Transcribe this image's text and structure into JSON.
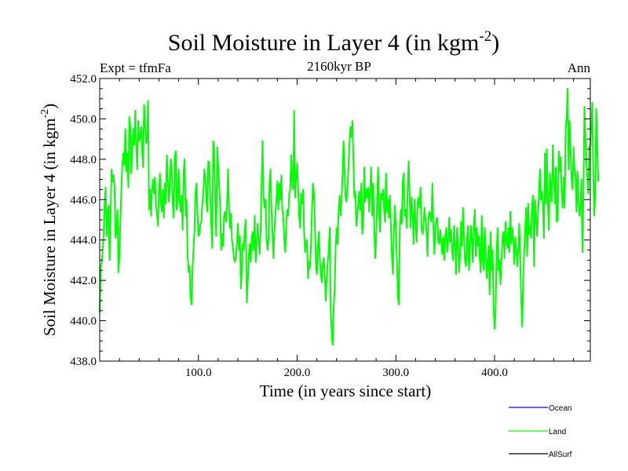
{
  "chart_data": {
    "type": "line",
    "title": "Soil Moisture in Layer 4 (in kgm",
    "title_exponent": "-2",
    "title_close": ")",
    "subtitle": "2160kyr BP",
    "left_label": "Expt = tfmFa",
    "right_label": "Ann",
    "xlabel": "Time (in years since start)",
    "ylabel": "Soil Moisture in Layer 4 (in kgm",
    "ylabel_exponent": "-2",
    "ylabel_close": ")",
    "xlim": [
      0,
      497
    ],
    "ylim": [
      438,
      452
    ],
    "x_ticks": [
      100,
      200,
      300,
      400
    ],
    "x_tick_labels": [
      "100.0",
      "200.0",
      "300.0",
      "400.0"
    ],
    "y_ticks": [
      438,
      440,
      442,
      444,
      446,
      448,
      450,
      452
    ],
    "y_tick_labels": [
      "438.0",
      "440.0",
      "442.0",
      "444.0",
      "446.0",
      "448.0",
      "450.0",
      "452.0"
    ],
    "legend": [
      {
        "name": "Ocean",
        "color": "#0000ff"
      },
      {
        "name": "Land",
        "color": "#00ff00"
      },
      {
        "name": "AllSurf",
        "color": "#000000"
      }
    ],
    "series": [
      {
        "name": "Land",
        "color": "#00ff00",
        "x_start": 0,
        "x_step": 1,
        "values": [
          440.4,
          442.6,
          442.9,
          443.5,
          444.3,
          445.8,
          446.6,
          444.2,
          445.4,
          445.7,
          443.0,
          445.2,
          447.5,
          446.9,
          447.2,
          446.7,
          444.1,
          444.4,
          445.5,
          442.4,
          443.2,
          445.0,
          446.6,
          447.8,
          448.3,
          447.7,
          449.5,
          447.4,
          448.3,
          446.6,
          450.1,
          449.6,
          447.3,
          448.6,
          449.5,
          448.7,
          450.4,
          448.6,
          447.5,
          449.9,
          448.9,
          449.1,
          449.6,
          448.4,
          447.6,
          450.7,
          449.9,
          448.8,
          448.9,
          450.9,
          445.5,
          446.5,
          445.2,
          446.4,
          447.0,
          446.3,
          447.1,
          445.7,
          445.3,
          444.7,
          446.4,
          447.3,
          445.8,
          445.4,
          446.5,
          445.1,
          446.8,
          445.8,
          448.2,
          447.0,
          445.9,
          446.7,
          448.0,
          447.6,
          445.7,
          445.1,
          448.1,
          448.4,
          445.5,
          446.2,
          447.5,
          446.0,
          445.4,
          446.2,
          444.5,
          447.4,
          448.0,
          445.2,
          446.0,
          443.3,
          442.4,
          442.7,
          441.1,
          440.8,
          442.5,
          443.6,
          444.4,
          446.3,
          446.8,
          445.4,
          444.2,
          444.3,
          444.8,
          444.9,
          445.8,
          446.4,
          447.5,
          447.1,
          445.9,
          445.4,
          447.9,
          447.8,
          446.2,
          444.8,
          443.6,
          448.9,
          448.4,
          446.0,
          444.2,
          448.6,
          447.7,
          446.7,
          445.8,
          443.5,
          444.3,
          443.7,
          445.2,
          445.4,
          444.9,
          445.7,
          447.5,
          445.5,
          444.6,
          445.3,
          444.0,
          443.6,
          443.1,
          442.9,
          443.2,
          443.8,
          444.8,
          443.5,
          444.2,
          441.6,
          442.5,
          443.8,
          443.5,
          444.6,
          445.0,
          440.9,
          441.9,
          443.2,
          443.8,
          442.9,
          444.1,
          444.4,
          443.5,
          445.2,
          442.9,
          443.7,
          444.8,
          444.0,
          443.3,
          444.5,
          446.8,
          448.9,
          446.1,
          445.6,
          446.0,
          444.1,
          443.5,
          444.0,
          446.8,
          447.5,
          445.5,
          444.3,
          443.1,
          444.5,
          445.3,
          446.0,
          446.9,
          445.5,
          446.8,
          446.0,
          447.2,
          445.5,
          445.1,
          444.0,
          443.4,
          444.9,
          445.5,
          445.2,
          446.3,
          446.5,
          448.2,
          446.9,
          446.5,
          450.4,
          446.1,
          447.1,
          447.8,
          446.6,
          445.2,
          444.6,
          446.3,
          445.8,
          446.5,
          444.5,
          443.4,
          443.8,
          444.0,
          442.1,
          442.9,
          442.6,
          443.7,
          445.4,
          446.8,
          446.3,
          444.7,
          442.8,
          442.3,
          443.6,
          444.4,
          443.1,
          442.3,
          441.9,
          442.8,
          443.1,
          442.2,
          441.0,
          442.2,
          442.9,
          443.5,
          444.6,
          440.6,
          439.4,
          438.8,
          440.7,
          441.5,
          443.6,
          444.6,
          443.8,
          445.4,
          446.2,
          445.2,
          446.0,
          447.2,
          448.9,
          447.5,
          446.1,
          445.9,
          446.6,
          447.6,
          448.8,
          449.6,
          449.1,
          449.9,
          447.9,
          446.1,
          446.4,
          444.7,
          445.2,
          445.9,
          446.4,
          445.5,
          446.8,
          444.3,
          445.0,
          447.6,
          445.9,
          446.5,
          446.1,
          446.6,
          445.4,
          446.4,
          447.6,
          445.2,
          446.8,
          444.8,
          443.1,
          443.9,
          446.0,
          447.6,
          445.4,
          444.4,
          446.3,
          446.0,
          446.5,
          445.6,
          444.9,
          447.3,
          445.4,
          446.0,
          445.1,
          446.2,
          444.6,
          443.2,
          442.3,
          444.4,
          445.7,
          444.6,
          443.1,
          441.2,
          440.8,
          444.5,
          445.5,
          444.8,
          446.9,
          447.3,
          445.2,
          445.5,
          444.6,
          446.6,
          447.9,
          446.1,
          444.6,
          446.1,
          445.3,
          443.8,
          446.0,
          444.8,
          443.9,
          445.8,
          446.1,
          445.6,
          446.6,
          444.6,
          444.3,
          444.7,
          445.6,
          445.0,
          444.5,
          443.2,
          445.0,
          445.4,
          445.2,
          444.9,
          446.8,
          444.6,
          443.3,
          444.6,
          445.0,
          445.1,
          443.9,
          443.8,
          444.5,
          443.9,
          443.3,
          444.1,
          443.0,
          444.2,
          444.6,
          443.4,
          444.0,
          445.1,
          443.9,
          444.5,
          443.4,
          443.0,
          444.7,
          443.8,
          442.3,
          444.6,
          443.9,
          442.4,
          443.2,
          444.9,
          443.7,
          445.6,
          444.2,
          443.0,
          442.7,
          444.0,
          444.7,
          442.5,
          443.4,
          444.7,
          444.0,
          442.9,
          444.7,
          445.5,
          443.2,
          444.6,
          443.7,
          444.2,
          443.1,
          442.4,
          445.2,
          443.0,
          442.5,
          444.6,
          443.5,
          442.1,
          442.9,
          443.7,
          441.3,
          444.4,
          442.5,
          443.5,
          440.7,
          439.6,
          440.4,
          443.2,
          444.6,
          442.5,
          443.0,
          441.8,
          443.0,
          444.1,
          444.4,
          443.1,
          444.9,
          443.9,
          443.6,
          444.6,
          443.4,
          445.4,
          443.8,
          444.6,
          444.0,
          442.8,
          444.1,
          443.5,
          442.7,
          443.6,
          444.8,
          443.0,
          441.0,
          439.7,
          442.2,
          443.4,
          444.5,
          445.6,
          443.2,
          445.8,
          444.3,
          444.7,
          444.1,
          445.8,
          446.2,
          442.7,
          446.0,
          445.1,
          444.2,
          445.3,
          446.3,
          447.5,
          446.0,
          446.4,
          445.7,
          444.1,
          448.3,
          445.8,
          448.5,
          445.8,
          444.5,
          447.3,
          446.7,
          445.9,
          448.7,
          447.1,
          445.8,
          447.6,
          444.9,
          445.0,
          448.4,
          447.4,
          448.1,
          446.3,
          445.6,
          447.1,
          445.6,
          449.5,
          450.1,
          451.5,
          447.5,
          449.9,
          448.4,
          447.0,
          446.5,
          448.6,
          447.5,
          447.2,
          445.4,
          447.4,
          446.0,
          445.2,
          445.7,
          447.0,
          443.4,
          446.2,
          450.6,
          449.2,
          447.9,
          447.0,
          446.3,
          448.6,
          448.7,
          449.6,
          450.8,
          447.2,
          445.2,
          446.4,
          450.5,
          448.7,
          446.9
        ]
      }
    ]
  }
}
